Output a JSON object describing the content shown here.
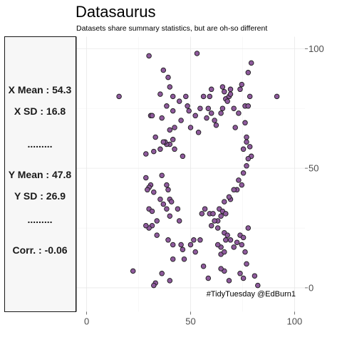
{
  "chart_data": {
    "type": "scatter",
    "title": "Datasaurus",
    "subtitle": "Datasets share summary statistics, but are oh-so different",
    "caption": "#TidyTuesday @EdBurn1",
    "xlim": [
      -5,
      105
    ],
    "ylim": [
      -10,
      105
    ],
    "x_ticks": [
      0,
      50,
      100
    ],
    "y_ticks": [
      0,
      50,
      100
    ],
    "y_axis_position": "right",
    "grid": true,
    "point_color": "#8e5a9c",
    "stats": [
      {
        "label": "X Mean : 54.3"
      },
      {
        "label": "X SD : 16.8"
      },
      {
        "label": "........."
      },
      {
        "label": "Y Mean : 47.8"
      },
      {
        "label": "Y SD : 26.9"
      },
      {
        "label": "........."
      },
      {
        "label": "Corr. : -0.06"
      }
    ],
    "points": [
      [
        15.6,
        80.0
      ],
      [
        30.0,
        97.0
      ],
      [
        36.9,
        91.0
      ],
      [
        39.2,
        88.0
      ],
      [
        40.0,
        84.0
      ],
      [
        35.4,
        81.0
      ],
      [
        41.5,
        80.0
      ],
      [
        38.5,
        76.0
      ],
      [
        44.6,
        78.0
      ],
      [
        47.7,
        80.0
      ],
      [
        48.5,
        76.0
      ],
      [
        49.2,
        74.0
      ],
      [
        53.1,
        98.0
      ],
      [
        45.4,
        70.0
      ],
      [
        30.8,
        72.0
      ],
      [
        31.5,
        72.0
      ],
      [
        36.2,
        71.0
      ],
      [
        41.5,
        74.0
      ],
      [
        42.3,
        67.0
      ],
      [
        40.0,
        66.0
      ],
      [
        53.8,
        65.0
      ],
      [
        52.3,
        72.0
      ],
      [
        57.7,
        71.0
      ],
      [
        60.0,
        73.0
      ],
      [
        58.5,
        75.0
      ],
      [
        61.5,
        70.0
      ],
      [
        62.3,
        68.0
      ],
      [
        64.6,
        73.0
      ],
      [
        65.4,
        75.0
      ],
      [
        65.4,
        84.0
      ],
      [
        66.2,
        82.0
      ],
      [
        66.9,
        79.0
      ],
      [
        67.7,
        78.0
      ],
      [
        68.5,
        80.0
      ],
      [
        69.2,
        81.0
      ],
      [
        69.2,
        83.0
      ],
      [
        70.8,
        75.0
      ],
      [
        71.5,
        67.0
      ],
      [
        73.1,
        73.0
      ],
      [
        76.2,
        76.0
      ],
      [
        77.7,
        76.0
      ],
      [
        76.2,
        69.0
      ],
      [
        76.9,
        63.0
      ],
      [
        76.9,
        61.0
      ],
      [
        75.4,
        58.0
      ],
      [
        78.5,
        59.0
      ],
      [
        79.2,
        55.0
      ],
      [
        77.7,
        54.0
      ],
      [
        76.9,
        51.0
      ],
      [
        75.4,
        48.0
      ],
      [
        73.1,
        45.0
      ],
      [
        72.3,
        41.0
      ],
      [
        74.6,
        43.0
      ],
      [
        70.8,
        41.0
      ],
      [
        69.2,
        37.0
      ],
      [
        68.5,
        38.0
      ],
      [
        66.2,
        36.0
      ],
      [
        63.8,
        33.0
      ],
      [
        65.4,
        32.0
      ],
      [
        66.9,
        31.0
      ],
      [
        64.6,
        30.0
      ],
      [
        63.1,
        28.0
      ],
      [
        61.5,
        28.0
      ],
      [
        60.0,
        26.0
      ],
      [
        59.2,
        31.0
      ],
      [
        55.4,
        31.0
      ],
      [
        56.9,
        33.0
      ],
      [
        60.8,
        31.0
      ],
      [
        63.1,
        25.0
      ],
      [
        66.2,
        23.0
      ],
      [
        67.7,
        22.0
      ],
      [
        66.9,
        20.0
      ],
      [
        64.6,
        17.0
      ],
      [
        63.1,
        18.0
      ],
      [
        64.6,
        14.0
      ],
      [
        66.2,
        15.0
      ],
      [
        69.2,
        20.0
      ],
      [
        70.8,
        17.0
      ],
      [
        72.3,
        19.0
      ],
      [
        74.6,
        18.0
      ],
      [
        73.8,
        22.0
      ],
      [
        75.4,
        21.0
      ],
      [
        77.7,
        25.0
      ],
      [
        76.2,
        15.0
      ],
      [
        76.9,
        10.0
      ],
      [
        75.4,
        4.0
      ],
      [
        73.8,
        6.0
      ],
      [
        66.2,
        7.0
      ],
      [
        64.6,
        8.0
      ],
      [
        56.2,
        9.0
      ],
      [
        58.5,
        4.0
      ],
      [
        68.5,
        3.0
      ],
      [
        80.8,
        5.0
      ],
      [
        82.3,
        1.0
      ],
      [
        91.5,
        80.0
      ],
      [
        79.2,
        94.0
      ],
      [
        77.7,
        90.0
      ],
      [
        78.5,
        80.0
      ],
      [
        74.6,
        85.0
      ],
      [
        73.8,
        83.0
      ],
      [
        60.0,
        83.0
      ],
      [
        59.2,
        80.0
      ],
      [
        56.2,
        80.0
      ],
      [
        54.6,
        75.0
      ],
      [
        50.0,
        67.0
      ],
      [
        46.2,
        55.0
      ],
      [
        42.3,
        58.0
      ],
      [
        41.5,
        62.0
      ],
      [
        40.0,
        60.0
      ],
      [
        38.5,
        60.0
      ],
      [
        37.7,
        61.0
      ],
      [
        36.9,
        61.0
      ],
      [
        35.4,
        58.0
      ],
      [
        33.1,
        63.0
      ],
      [
        32.3,
        57.0
      ],
      [
        28.5,
        56.0
      ],
      [
        28.5,
        46.0
      ],
      [
        30.8,
        43.0
      ],
      [
        30.0,
        42.0
      ],
      [
        32.3,
        40.0
      ],
      [
        29.2,
        41.0
      ],
      [
        30.0,
        33.0
      ],
      [
        31.5,
        32.0
      ],
      [
        35.4,
        37.0
      ],
      [
        36.2,
        47.0
      ],
      [
        38.5,
        43.0
      ],
      [
        39.2,
        41.0
      ],
      [
        40.0,
        37.0
      ],
      [
        40.8,
        36.0
      ],
      [
        43.8,
        33.0
      ],
      [
        44.6,
        28.0
      ],
      [
        40.0,
        30.0
      ],
      [
        38.5,
        33.0
      ],
      [
        36.9,
        35.0
      ],
      [
        33.8,
        28.0
      ],
      [
        31.5,
        26.0
      ],
      [
        30.0,
        25.0
      ],
      [
        28.5,
        26.0
      ],
      [
        33.8,
        22.0
      ],
      [
        39.2,
        20.0
      ],
      [
        41.5,
        18.0
      ],
      [
        45.4,
        18.0
      ],
      [
        46.2,
        16.0
      ],
      [
        50.0,
        18.0
      ],
      [
        51.5,
        20.0
      ],
      [
        52.3,
        15.0
      ],
      [
        54.6,
        20.0
      ],
      [
        41.5,
        12.0
      ],
      [
        36.2,
        6.0
      ],
      [
        33.1,
        2.0
      ],
      [
        32.3,
        1.0
      ],
      [
        40.0,
        3.0
      ],
      [
        46.9,
        12.0
      ],
      [
        22.3,
        7.0
      ]
    ]
  }
}
